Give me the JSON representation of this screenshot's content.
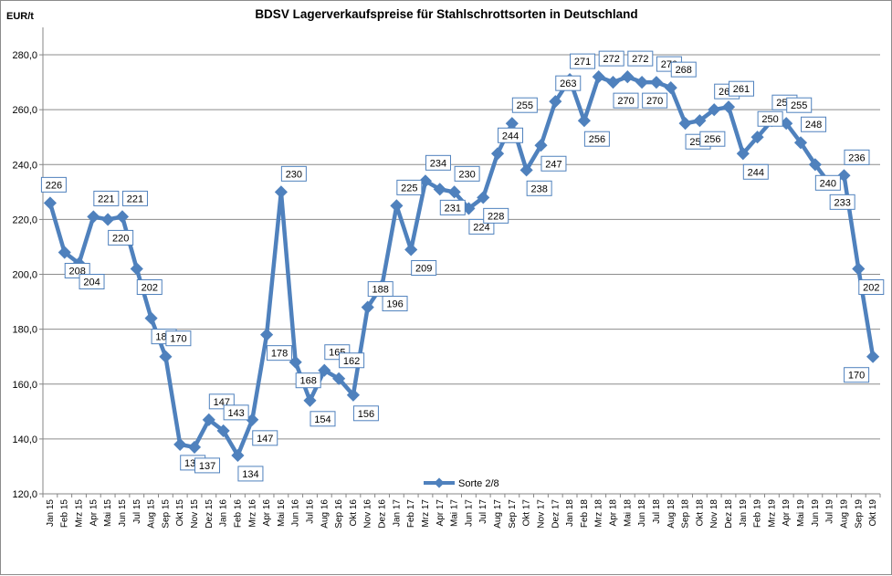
{
  "chart_data": {
    "type": "line",
    "title": "BDSV Lagerverkaufspreise für Stahlschrottsorten in Deutschland",
    "ylabel": "EUR/t",
    "xlabel": "",
    "ylim": [
      120,
      290
    ],
    "yticks": [
      "120,0",
      "140,0",
      "160,0",
      "180,0",
      "200,0",
      "220,0",
      "240,0",
      "260,0",
      "280,0"
    ],
    "grid": true,
    "legend_position": "bottom",
    "categories": [
      "Jan 15",
      "Feb 15",
      "Mrz 15",
      "Apr 15",
      "Mai 15",
      "Jun 15",
      "Jul 15",
      "Aug 15",
      "Sep 15",
      "Okt 15",
      "Nov 15",
      "Dez 15",
      "Jan 16",
      "Feb 16",
      "Mrz 16",
      "Apr 16",
      "Mai 16",
      "Jun 16",
      "Jul 16",
      "Aug 16",
      "Sep 16",
      "Okt 16",
      "Nov 16",
      "Dez 16",
      "Jan 17",
      "Feb 17",
      "Mrz 17",
      "Apr 17",
      "Mai 17",
      "Jun 17",
      "Jul 17",
      "Aug 17",
      "Sep 17",
      "Okt 17",
      "Nov 17",
      "Dez 17",
      "Jan 18",
      "Feb 18",
      "Mrz 18",
      "Apr 18",
      "Mai 18",
      "Jun 18",
      "Jul 18",
      "Aug 18",
      "Sep 18",
      "Okt 18",
      "Nov 18",
      "Dez 18",
      "Jan 19",
      "Feb 19",
      "Mrz 19",
      "Apr 19",
      "Mai 19",
      "Jun 19",
      "Jul 19",
      "Aug 19",
      "Sep 19",
      "Okt 19"
    ],
    "series": [
      {
        "name": "Sorte 2/8",
        "color": "#4f81bd",
        "values": [
          226,
          208,
          204,
          221,
          220,
          221,
          202,
          184,
          170,
          138,
          137,
          147,
          143,
          134,
          147,
          178,
          230,
          168,
          154,
          165,
          162,
          156,
          188,
          196,
          225,
          209,
          234,
          231,
          230,
          224,
          228,
          244,
          255,
          238,
          247,
          263,
          271,
          256,
          272,
          270,
          272,
          270,
          270,
          268,
          255,
          256,
          260,
          261,
          244,
          250,
          256,
          255,
          248,
          240,
          233,
          236,
          202,
          170
        ],
        "labels": [
          "226",
          "208",
          "204",
          "221",
          "220",
          "221",
          "202",
          "184",
          "170",
          "138",
          "137",
          "147",
          "143",
          "134",
          "147",
          "178",
          "230",
          "168",
          "154",
          "165",
          "162",
          "156",
          "188",
          "196",
          "225",
          "209",
          "234",
          "231",
          "230",
          "224",
          "228",
          "244",
          "255",
          "238",
          "247",
          "263",
          "271",
          "256",
          "272",
          "270",
          "272",
          "270",
          "270",
          "268",
          "255",
          "256",
          "260",
          "261",
          "244",
          "250",
          "256",
          "255",
          "248",
          "240",
          "233",
          "236",
          "202",
          "170"
        ]
      }
    ]
  }
}
